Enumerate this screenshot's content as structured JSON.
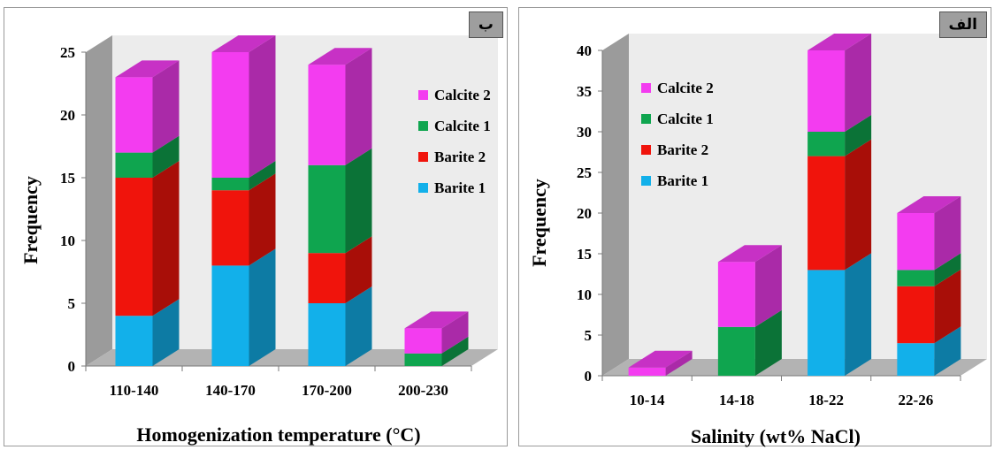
{
  "chart_data": [
    {
      "type": "bar",
      "stacked": true,
      "style": "3d",
      "panel_tag": "ب",
      "categories": [
        "110-140",
        "140-170",
        "170-200",
        "200-230"
      ],
      "series": [
        {
          "name": "Barite 1",
          "color": "#12b0ea",
          "values": [
            4,
            8,
            5,
            0
          ]
        },
        {
          "name": "Barite 2",
          "color": "#f0140c",
          "values": [
            11,
            6,
            4,
            0
          ]
        },
        {
          "name": "Calcite 1",
          "color": "#0fa54f",
          "values": [
            2,
            1,
            7,
            1
          ]
        },
        {
          "name": "Calcite 2",
          "color": "#f33cf0",
          "values": [
            6,
            10,
            8,
            2
          ]
        }
      ],
      "yticks": [
        "0",
        "5",
        "10",
        "15",
        "20",
        "25"
      ],
      "ylim": [
        0,
        25
      ],
      "xlabel": "Homogenization temperature (°C)",
      "ylabel": "Frequency",
      "legend_position": "right"
    },
    {
      "type": "bar",
      "stacked": true,
      "style": "3d",
      "panel_tag": "الف",
      "categories": [
        "10-14",
        "14-18",
        "18-22",
        "22-26"
      ],
      "series": [
        {
          "name": "Barite 1",
          "color": "#12b0ea",
          "values": [
            0,
            0,
            13,
            4
          ]
        },
        {
          "name": "Barite 2",
          "color": "#f0140c",
          "values": [
            0,
            0,
            14,
            7
          ]
        },
        {
          "name": "Calcite 1",
          "color": "#0fa54f",
          "values": [
            0,
            6,
            3,
            2
          ]
        },
        {
          "name": "Calcite 2",
          "color": "#f33cf0",
          "values": [
            1,
            8,
            10,
            7
          ]
        }
      ],
      "yticks": [
        "0",
        "5",
        "10",
        "15",
        "20",
        "25",
        "30",
        "35",
        "40"
      ],
      "ylim": [
        0,
        40
      ],
      "xlabel": "Salinity (wt% NaCl)",
      "ylabel": "Frequency",
      "legend_position": "left"
    }
  ]
}
